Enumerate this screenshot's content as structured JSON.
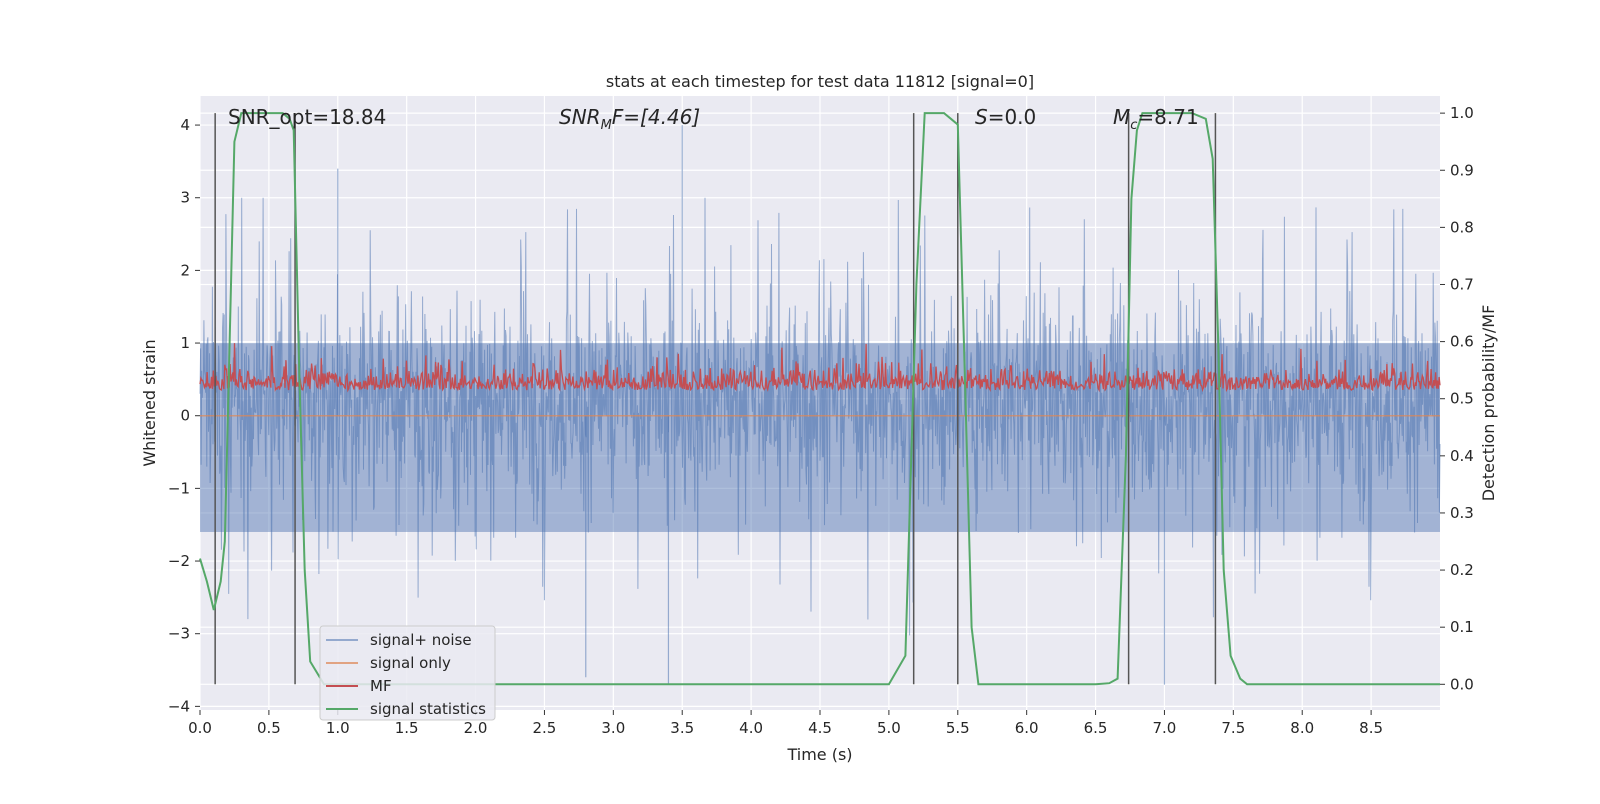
{
  "chart_data": {
    "type": "line",
    "title": "stats at each timestep for test data 11812 [signal=0]",
    "xlabel": "Time (s)",
    "ylabel_left": "Whitened strain",
    "ylabel_right": "Detection probability/MF",
    "xlim": [
      0.0,
      9.0
    ],
    "ylim_left": [
      -4.05,
      4.4
    ],
    "ylim_right": [
      -0.045,
      1.03
    ],
    "x_ticks": [
      "0.0",
      "0.5",
      "1.0",
      "1.5",
      "2.0",
      "2.5",
      "3.0",
      "3.5",
      "4.0",
      "4.5",
      "5.0",
      "5.5",
      "6.0",
      "6.5",
      "7.0",
      "7.5",
      "8.0",
      "8.5"
    ],
    "y_ticks_left": [
      "−4",
      "−3",
      "−2",
      "−1",
      "0",
      "1",
      "2",
      "3",
      "4"
    ],
    "y_ticks_right": [
      "0.0",
      "0.1",
      "0.2",
      "0.3",
      "0.4",
      "0.5",
      "0.6",
      "0.7",
      "0.8",
      "0.9",
      "1.0"
    ],
    "grid": true,
    "legend_position": "lower-left",
    "annotations": {
      "snr_opt": "SNR_opt=18.84",
      "snr_mf_symbol": "SNR",
      "snr_mf_sub": "M",
      "snr_mf_rest": "F=[4.46]",
      "s_symbol": "S",
      "s_rest": "=0.0",
      "mc_symbol": "M",
      "mc_sub": "c",
      "mc_rest": "=8.71"
    },
    "vertical_markers": [
      0.11,
      0.69,
      5.18,
      5.5,
      6.74,
      7.37
    ],
    "series": [
      {
        "name": "signal+ noise",
        "color": "#4c72b0",
        "axis": "left",
        "style": "noise band, values between about -3.7 and 4.0",
        "envelope_typical": [
          -1.6,
          2.0
        ],
        "peaks": [
          {
            "x": 1.0,
            "y": 3.4
          },
          {
            "x": 3.5,
            "y": 4.0
          },
          {
            "x": 2.8,
            "y": -3.6
          },
          {
            "x": 3.4,
            "y": -3.7
          },
          {
            "x": 7.0,
            "y": -3.7
          }
        ]
      },
      {
        "name": "signal only",
        "color": "#dd8452",
        "axis": "left",
        "values_constant": 0.0
      },
      {
        "name": "MF",
        "color": "#c44e52",
        "axis": "right",
        "style": "noise band, values between about 0.48 and 0.6"
      },
      {
        "name": "signal statistics",
        "color": "#55a868",
        "axis": "right",
        "x": [
          0.0,
          0.05,
          0.1,
          0.15,
          0.18,
          0.2,
          0.25,
          0.3,
          0.35,
          0.4,
          0.45,
          0.5,
          0.55,
          0.6,
          0.65,
          0.68,
          0.72,
          0.76,
          0.8,
          0.85,
          0.9,
          1.0,
          2.0,
          3.0,
          3.8,
          4.0,
          4.5,
          5.0,
          5.12,
          5.2,
          5.26,
          5.3,
          5.4,
          5.45,
          5.5,
          5.55,
          5.6,
          5.65,
          5.7,
          6.0,
          6.5,
          6.6,
          6.66,
          6.72,
          6.76,
          6.8,
          6.84,
          6.9,
          7.0,
          7.1,
          7.2,
          7.3,
          7.35,
          7.39,
          7.43,
          7.48,
          7.55,
          7.6,
          7.7,
          8.0,
          9.0
        ],
        "y": [
          0.22,
          0.18,
          0.13,
          0.18,
          0.25,
          0.45,
          0.95,
          1.0,
          1.0,
          1.0,
          1.0,
          1.0,
          1.0,
          1.0,
          0.99,
          0.97,
          0.55,
          0.2,
          0.04,
          0.02,
          0.0,
          0.0,
          0.0,
          0.0,
          0.0,
          0.0,
          0.0,
          0.0,
          0.05,
          0.7,
          1.0,
          1.0,
          1.0,
          0.99,
          0.98,
          0.55,
          0.1,
          0.0,
          0.0,
          0.0,
          0.0,
          0.002,
          0.01,
          0.4,
          0.85,
          0.97,
          1.0,
          1.0,
          1.0,
          1.0,
          1.0,
          0.99,
          0.92,
          0.6,
          0.2,
          0.05,
          0.01,
          0.0,
          0.0,
          0.0,
          0.0
        ]
      }
    ]
  }
}
